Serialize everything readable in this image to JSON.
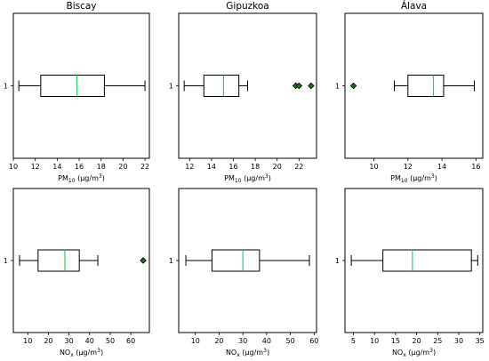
{
  "chart_data": [
    {
      "type": "box",
      "title": "Biscay",
      "xlabel": {
        "main": "PM",
        "sub": "10",
        "unit": " (µg/m",
        "sup": "3",
        "end": ")"
      },
      "ytick": "1",
      "xlim": [
        10,
        22.4
      ],
      "xticks": [
        "10",
        "12",
        "14",
        "16",
        "18",
        "20",
        "22"
      ],
      "box": {
        "whislo": 10.5,
        "q1": 12.5,
        "median": 15.8,
        "q3": 18.3,
        "whishi": 22.0,
        "fliers": []
      }
    },
    {
      "type": "box",
      "title": "Gipuzkoa",
      "xlabel": {
        "main": "PM",
        "sub": "10",
        "unit": " (µg/m",
        "sup": "3",
        "end": ")"
      },
      "ytick": "1",
      "xlim": [
        11,
        23.6
      ],
      "xticks": [
        "12",
        "14",
        "16",
        "18",
        "20",
        "22"
      ],
      "box": {
        "whislo": 11.5,
        "q1": 13.3,
        "median": 15.1,
        "q3": 16.5,
        "whishi": 17.3,
        "fliers": [
          21.7,
          22.0,
          23.1
        ]
      }
    },
    {
      "type": "box",
      "title": "Álava",
      "xlabel": {
        "main": "PM",
        "sub": "10",
        "unit": " (µg/m",
        "sup": "3",
        "end": ")"
      },
      "ytick": "1",
      "xlim": [
        8.3,
        16.4
      ],
      "xticks": [
        "10",
        "12",
        "14",
        "16"
      ],
      "box": {
        "whislo": 11.2,
        "q1": 12.0,
        "median": 13.5,
        "q3": 14.1,
        "whishi": 15.9,
        "fliers": [
          8.8
        ]
      }
    },
    {
      "type": "box",
      "title": "",
      "xlabel": {
        "main": "NO",
        "sub": "x",
        "unit": " (µg/m",
        "sup": "3",
        "end": ")"
      },
      "ytick": "1",
      "xlim": [
        3,
        69
      ],
      "xticks": [
        "10",
        "20",
        "30",
        "40",
        "50",
        "60"
      ],
      "box": {
        "whislo": 6,
        "q1": 15,
        "median": 28,
        "q3": 35,
        "whishi": 44,
        "fliers": [
          66
        ]
      }
    },
    {
      "type": "box",
      "title": "",
      "xlabel": {
        "main": "NO",
        "sub": "x",
        "unit": " (µg/m",
        "sup": "3",
        "end": ")"
      },
      "ytick": "1",
      "xlim": [
        3,
        61
      ],
      "xticks": [
        "10",
        "20",
        "30",
        "40",
        "50",
        "60"
      ],
      "box": {
        "whislo": 6,
        "q1": 17,
        "median": 30,
        "q3": 37,
        "whishi": 58,
        "fliers": []
      }
    },
    {
      "type": "box",
      "title": "",
      "xlabel": {
        "main": "NO",
        "sub": "x",
        "unit": " (µg/m",
        "sup": "3",
        "end": ")"
      },
      "ytick": "1",
      "xlim": [
        3,
        35.7
      ],
      "xticks": [
        "5",
        "10",
        "15",
        "20",
        "25",
        "30",
        "35"
      ],
      "box": {
        "whislo": 4.5,
        "q1": 12,
        "median": 19,
        "q3": 33,
        "whishi": 34.5,
        "fliers": []
      }
    }
  ],
  "colors": {
    "median": "#2ecc71",
    "flier_fill": "#1e6b1e",
    "frame": "#000000"
  }
}
